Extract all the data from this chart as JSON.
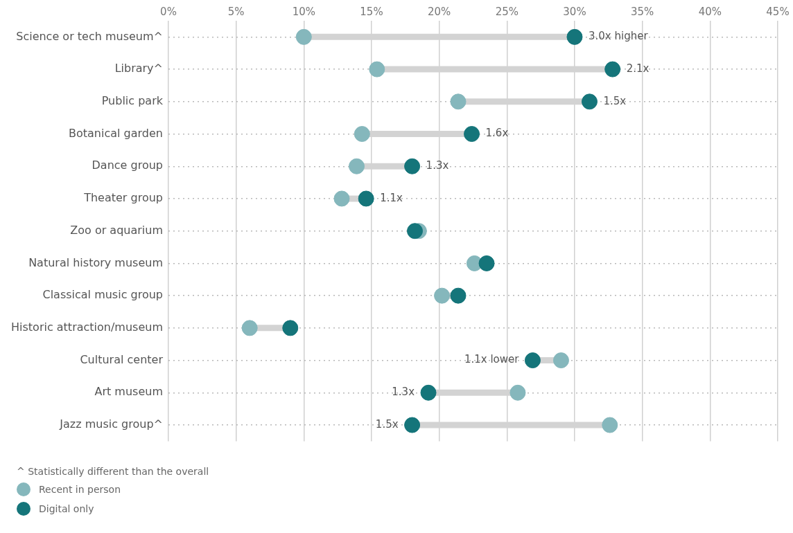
{
  "chart_data": {
    "type": "scatter",
    "orientation": "horizontal",
    "categories": [
      "Science or tech museum^",
      "Library^",
      "Public park",
      "Botanical garden",
      "Dance group",
      "Theater group",
      "Zoo or aquarium",
      "Natural history museum",
      "Classical music group",
      "Historic attraction/museum",
      "Cultural center",
      "Art museum",
      "Jazz music group^"
    ],
    "series": [
      {
        "name": "Recent in person",
        "color": "#85b7bc",
        "values": [
          10.0,
          15.4,
          21.4,
          14.3,
          13.9,
          12.8,
          18.5,
          22.6,
          20.2,
          6.0,
          29.0,
          25.8,
          32.6
        ]
      },
      {
        "name": "Digital only",
        "color": "#15757a",
        "values": [
          30.0,
          32.8,
          31.1,
          22.4,
          18.0,
          14.6,
          18.2,
          23.5,
          21.4,
          9.0,
          26.9,
          19.2,
          18.0
        ]
      }
    ],
    "xlim": [
      0,
      45
    ],
    "xticks": [
      {
        "value": 0,
        "label": "0%"
      },
      {
        "value": 5,
        "label": "5%"
      },
      {
        "value": 10,
        "label": "10%"
      },
      {
        "value": 15,
        "label": "15%"
      },
      {
        "value": 20,
        "label": "20%"
      },
      {
        "value": 25,
        "label": "25%"
      },
      {
        "value": 30,
        "label": "30%"
      },
      {
        "value": 35,
        "label": "35%"
      },
      {
        "value": 40,
        "label": "40%"
      },
      {
        "value": 45,
        "label": "45%"
      }
    ],
    "grid": true,
    "marker": "circle",
    "legend": "bottom left",
    "annotations": [
      {
        "text": "3.0x higher",
        "x": 30.0,
        "y": "Science or tech museum^"
      },
      {
        "text": "2.1x",
        "x": 32.8,
        "y": "Library^"
      },
      {
        "text": "1.5x",
        "x": 31.1,
        "y": "Public park"
      },
      {
        "text": "1.6x",
        "x": 22.4,
        "y": "Botanical garden"
      },
      {
        "text": "1.3x",
        "x": 18.0,
        "y": "Dance group"
      },
      {
        "text": "1.1x",
        "x": 14.6,
        "y": "Theater group"
      },
      {
        "text": "1.1x lower",
        "x": 26.9,
        "y": "Cultural center"
      },
      {
        "text": "1.3x",
        "x": 19.2,
        "y": "Art museum"
      },
      {
        "text": "1.5x",
        "x": 18.0,
        "y": "Jazz music group^"
      },
      "^ Statistically different than the overall"
    ]
  }
}
